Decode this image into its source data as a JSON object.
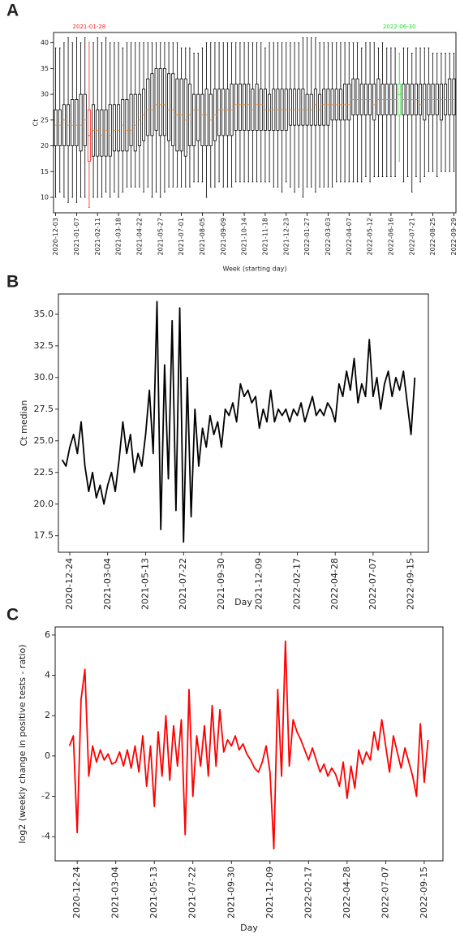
{
  "chart_data": [
    {
      "type": "box",
      "panel": "A",
      "xlabel": "Week (starting day)",
      "ylabel": "Ct",
      "categories": [
        "2020-12-03",
        null,
        null,
        null,
        null,
        "2021-01-07",
        null,
        null,
        null,
        null,
        "2021-02-11",
        null,
        null,
        null,
        null,
        "2021-03-18",
        null,
        null,
        null,
        null,
        "2021-04-22",
        null,
        null,
        null,
        null,
        "2021-05-27",
        null,
        null,
        null,
        null,
        "2021-07-01",
        null,
        null,
        null,
        null,
        "2021-08-05",
        null,
        null,
        null,
        null,
        "2021-09-09",
        null,
        null,
        null,
        null,
        "2021-10-14",
        null,
        null,
        null,
        null,
        "2021-11-18",
        null,
        null,
        null,
        null,
        "2021-12-23",
        null,
        null,
        null,
        null,
        "2022-01-27",
        null,
        null,
        null,
        null,
        "2022-03-03",
        null,
        null,
        null,
        null,
        "2022-04-07",
        null,
        null,
        null,
        null,
        "2022-05-12",
        null,
        null,
        null,
        null,
        "2022-06-16",
        null,
        null,
        null,
        null,
        "2022-07-21",
        null,
        null,
        null,
        null,
        "2022-08-25",
        null,
        null,
        null,
        null,
        "2022-09-29"
      ],
      "low": [
        10,
        11,
        10,
        9,
        10,
        9,
        10,
        10,
        8,
        10,
        10,
        10,
        11,
        10,
        11,
        10,
        11,
        12,
        12,
        12,
        12,
        11,
        12,
        10,
        11,
        10,
        11,
        12,
        12,
        12,
        12,
        12,
        12,
        13,
        13,
        13,
        10,
        12,
        12,
        13,
        12,
        12,
        12,
        13,
        13,
        13,
        13,
        13,
        13,
        13,
        13,
        13,
        12,
        12,
        11,
        13,
        12,
        11,
        12,
        10,
        12,
        12,
        11,
        12,
        12,
        12,
        12,
        13,
        13,
        13,
        13,
        13,
        13,
        13,
        14,
        13,
        14,
        14,
        14,
        14,
        14,
        14,
        17,
        13,
        14,
        11,
        14,
        13,
        14,
        15,
        15,
        14,
        15,
        15,
        15,
        15
      ],
      "q1": [
        20,
        20,
        20,
        20,
        20,
        20,
        19,
        20,
        17,
        18,
        18,
        18,
        18,
        18,
        19,
        19,
        19,
        19,
        20,
        19,
        20,
        21,
        22,
        22,
        23,
        22,
        22,
        21,
        20,
        19,
        19,
        18,
        20,
        20,
        21,
        20,
        20,
        20,
        21,
        22,
        22,
        22,
        22,
        23,
        23,
        23,
        23,
        23,
        23,
        23,
        23,
        23,
        23,
        23,
        23,
        23,
        24,
        24,
        24,
        24,
        24,
        24,
        24,
        24,
        24,
        24,
        25,
        25,
        25,
        25,
        25,
        26,
        26,
        26,
        26,
        26,
        25,
        26,
        26,
        26,
        26,
        26,
        26,
        26,
        26,
        26,
        26,
        26,
        25,
        26,
        26,
        26,
        25,
        26,
        26,
        26
      ],
      "median": [
        24,
        24,
        25,
        24,
        24,
        24,
        24,
        25,
        22,
        23,
        23,
        22,
        23,
        22,
        23,
        23,
        24,
        23,
        23,
        24,
        25,
        26,
        27,
        27,
        28,
        28,
        28,
        27,
        27,
        26,
        26,
        25,
        26,
        27,
        27,
        26,
        26,
        25,
        26,
        27,
        27,
        27,
        27,
        28,
        28,
        28,
        28,
        27,
        28,
        28,
        27,
        27,
        27,
        27,
        27,
        27,
        27,
        27,
        27,
        27,
        27,
        27,
        28,
        27,
        28,
        28,
        28,
        28,
        28,
        28,
        28,
        29,
        29,
        29,
        29,
        29,
        28,
        29,
        29,
        29,
        29,
        29,
        30,
        29,
        29,
        29,
        29,
        28,
        29,
        29,
        29,
        29,
        29,
        29,
        29,
        29
      ],
      "q3": [
        27,
        27,
        28,
        28,
        29,
        29,
        30,
        30,
        27,
        28,
        27,
        27,
        27,
        28,
        28,
        28,
        29,
        29,
        30,
        30,
        30,
        31,
        33,
        34,
        35,
        35,
        35,
        34,
        34,
        33,
        33,
        33,
        32,
        30,
        30,
        30,
        31,
        30,
        31,
        31,
        31,
        31,
        32,
        32,
        32,
        32,
        32,
        31,
        32,
        31,
        31,
        30,
        31,
        31,
        31,
        31,
        31,
        31,
        31,
        31,
        30,
        30,
        31,
        30,
        31,
        31,
        31,
        31,
        31,
        32,
        32,
        33,
        33,
        32,
        32,
        32,
        32,
        33,
        32,
        32,
        32,
        32,
        32,
        32,
        32,
        32,
        32,
        32,
        32,
        32,
        32,
        32,
        32,
        32,
        33,
        33
      ],
      "high": [
        39,
        39,
        40,
        41,
        40,
        41,
        40,
        41,
        40,
        40,
        41,
        40,
        41,
        40,
        40,
        40,
        39,
        40,
        40,
        40,
        40,
        40,
        40,
        40,
        40,
        40,
        40,
        40,
        40,
        40,
        39,
        39,
        39,
        38,
        38,
        39,
        40,
        40,
        40,
        40,
        40,
        40,
        40,
        40,
        40,
        40,
        40,
        40,
        40,
        40,
        39,
        40,
        40,
        40,
        40,
        40,
        40,
        40,
        40,
        41,
        41,
        41,
        41,
        40,
        40,
        40,
        40,
        40,
        40,
        40,
        40,
        40,
        40,
        39,
        40,
        40,
        40,
        39,
        40,
        39,
        39,
        39,
        38,
        39,
        39,
        38,
        39,
        39,
        39,
        39,
        38,
        38,
        38,
        38,
        38,
        38
      ],
      "color": "#000000",
      "median_color": "#ff8c1a",
      "annotations": [
        {
          "text": "2021-01-28",
          "color": "#ff2020"
        },
        {
          "text": "2022-06-30",
          "color": "#22dd22"
        }
      ],
      "ylim": [
        7,
        42
      ],
      "yticks": [
        10,
        15,
        20,
        25,
        30,
        35,
        40
      ]
    },
    {
      "type": "line",
      "panel": "B",
      "xlabel": "Day",
      "ylabel": "Ct median",
      "color": "#000000",
      "x": [
        "2020-12-10",
        "2020-12-17",
        "2020-12-24",
        "2020-12-31",
        "2021-01-07",
        "2021-01-14",
        "2021-01-21",
        "2021-01-28",
        "2021-02-04",
        "2021-02-11",
        "2021-02-18",
        "2021-02-25",
        "2021-03-04",
        "2021-03-11",
        "2021-03-18",
        "2021-03-25",
        "2021-04-01",
        "2021-04-08",
        "2021-04-15",
        "2021-04-22",
        "2021-04-29",
        "2021-05-06",
        "2021-05-13",
        "2021-05-20",
        "2021-05-27",
        "2021-06-03",
        "2021-06-10",
        "2021-06-17",
        "2021-06-24",
        "2021-07-01",
        "2021-07-08",
        "2021-07-15",
        "2021-07-22",
        "2021-07-29",
        "2021-08-05",
        "2021-08-12",
        "2021-08-19",
        "2021-08-26",
        "2021-09-02",
        "2021-09-09",
        "2021-09-16",
        "2021-09-23",
        "2021-09-30",
        "2021-10-07",
        "2021-10-14",
        "2021-10-21",
        "2021-10-28",
        "2021-11-04",
        "2021-11-11",
        "2021-11-18",
        "2021-11-25",
        "2021-12-02",
        "2021-12-09",
        "2021-12-16",
        "2021-12-23",
        "2021-12-30",
        "2022-01-06",
        "2022-01-13",
        "2022-01-20",
        "2022-01-27",
        "2022-02-03",
        "2022-02-10",
        "2022-02-17",
        "2022-02-24",
        "2022-03-03",
        "2022-03-10",
        "2022-03-17",
        "2022-03-24",
        "2022-03-31",
        "2022-04-07",
        "2022-04-14",
        "2022-04-21",
        "2022-04-28",
        "2022-05-05",
        "2022-05-12",
        "2022-05-19",
        "2022-05-26",
        "2022-06-02",
        "2022-06-09",
        "2022-06-16",
        "2022-06-23",
        "2022-06-30",
        "2022-07-07",
        "2022-07-14",
        "2022-07-21",
        "2022-07-28",
        "2022-08-04",
        "2022-08-11",
        "2022-08-18",
        "2022-08-25",
        "2022-09-01",
        "2022-09-08",
        "2022-09-15",
        "2022-09-22"
      ],
      "values": [
        23.5,
        23.0,
        24.5,
        25.5,
        24.0,
        26.5,
        23.0,
        21.0,
        22.5,
        20.5,
        21.5,
        20.0,
        21.5,
        22.5,
        21.0,
        23.5,
        26.5,
        24.0,
        25.5,
        22.5,
        24.0,
        23.0,
        25.5,
        29.0,
        24.0,
        36.0,
        18.0,
        31.0,
        22.0,
        34.5,
        19.5,
        35.5,
        17.0,
        30.0,
        19.0,
        27.5,
        23.0,
        26.0,
        24.5,
        27.0,
        25.5,
        26.5,
        24.5,
        27.5,
        27.0,
        28.0,
        26.5,
        29.5,
        28.5,
        29.0,
        28.0,
        28.5,
        26.0,
        27.5,
        26.5,
        29.0,
        26.5,
        27.5,
        27.0,
        27.5,
        26.5,
        27.5,
        27.0,
        28.0,
        26.5,
        27.5,
        28.5,
        27.0,
        27.5,
        27.0,
        28.0,
        27.5,
        26.5,
        29.5,
        28.5,
        30.5,
        29.0,
        31.5,
        28.0,
        29.5,
        28.5,
        33.0,
        28.5,
        30.0,
        27.5,
        29.5,
        30.5,
        28.5,
        30.0,
        29.0,
        30.5,
        28.0,
        25.5,
        30.0
      ],
      "xlim": [
        "2020-12-03",
        "2022-10-17"
      ],
      "xticks": [
        "2020-12-24",
        "2021-03-04",
        "2021-05-13",
        "2021-07-22",
        "2021-09-30",
        "2021-12-09",
        "2022-02-17",
        "2022-04-28",
        "2022-07-07",
        "2022-09-15"
      ],
      "ylim": [
        16.2,
        36.6
      ],
      "yticks": [
        17.5,
        {
          "value": 20,
          "label": "20.0"
        },
        22.5,
        {
          "value": 25,
          "label": "25.0"
        },
        27.5,
        {
          "value": 30,
          "label": "30.0"
        },
        32.5,
        {
          "value": 35,
          "label": "35.0"
        }
      ]
    },
    {
      "type": "line",
      "panel": "C",
      "xlabel": "Day",
      "ylabel": "log2 (weekly change in positive tests - ratio)",
      "color": "#ff0000",
      "x": [
        "2020-12-10",
        "2020-12-17",
        "2020-12-24",
        "2020-12-31",
        "2021-01-07",
        "2021-01-14",
        "2021-01-21",
        "2021-01-28",
        "2021-02-04",
        "2021-02-11",
        "2021-02-18",
        "2021-02-25",
        "2021-03-04",
        "2021-03-11",
        "2021-03-18",
        "2021-03-25",
        "2021-04-01",
        "2021-04-08",
        "2021-04-15",
        "2021-04-22",
        "2021-04-29",
        "2021-05-06",
        "2021-05-13",
        "2021-05-20",
        "2021-05-27",
        "2021-06-03",
        "2021-06-10",
        "2021-06-17",
        "2021-06-24",
        "2021-07-01",
        "2021-07-08",
        "2021-07-15",
        "2021-07-22",
        "2021-07-29",
        "2021-08-05",
        "2021-08-12",
        "2021-08-19",
        "2021-08-26",
        "2021-09-02",
        "2021-09-09",
        "2021-09-16",
        "2021-09-23",
        "2021-09-30",
        "2021-10-07",
        "2021-10-14",
        "2021-10-21",
        "2021-10-28",
        "2021-11-04",
        "2021-11-11",
        "2021-11-18",
        "2021-11-25",
        "2021-12-02",
        "2021-12-09",
        "2021-12-16",
        "2021-12-23",
        "2021-12-30",
        "2022-01-06",
        "2022-01-13",
        "2022-01-20",
        "2022-01-27",
        "2022-02-03",
        "2022-02-10",
        "2022-02-17",
        "2022-02-24",
        "2022-03-03",
        "2022-03-10",
        "2022-03-17",
        "2022-03-24",
        "2022-03-31",
        "2022-04-07",
        "2022-04-14",
        "2022-04-21",
        "2022-04-28",
        "2022-05-05",
        "2022-05-12",
        "2022-05-19",
        "2022-05-26",
        "2022-06-02",
        "2022-06-09",
        "2022-06-16",
        "2022-06-23",
        "2022-06-30",
        "2022-07-07",
        "2022-07-14",
        "2022-07-21",
        "2022-07-28",
        "2022-08-04",
        "2022-08-11",
        "2022-08-18",
        "2022-08-25",
        "2022-09-01",
        "2022-09-08",
        "2022-09-15",
        "2022-09-22"
      ],
      "values": [
        0.5,
        1.0,
        -3.8,
        2.8,
        4.3,
        -1.0,
        0.5,
        -0.3,
        0.3,
        -0.2,
        0.1,
        -0.4,
        -0.3,
        0.2,
        -0.5,
        0.3,
        -0.6,
        0.5,
        -0.8,
        1.0,
        -1.5,
        0.5,
        -2.5,
        1.2,
        -1.0,
        2.0,
        -1.2,
        1.5,
        -0.5,
        1.8,
        -3.9,
        3.3,
        -2.0,
        1.0,
        -0.5,
        1.5,
        -1.0,
        2.5,
        -0.5,
        2.3,
        0.2,
        0.8,
        0.5,
        1.0,
        0.3,
        0.6,
        0.1,
        -0.2,
        -0.6,
        -0.8,
        -0.3,
        0.5,
        -0.8,
        -4.6,
        3.3,
        -1.0,
        5.7,
        -0.5,
        1.8,
        1.2,
        0.8,
        0.3,
        -0.2,
        0.4,
        -0.2,
        -0.8,
        -0.4,
        -1.0,
        -0.6,
        -0.9,
        -1.5,
        -0.3,
        -2.1,
        -0.5,
        -1.6,
        0.3,
        -0.4,
        0.2,
        -0.2,
        1.2,
        0.3,
        1.8,
        0.5,
        -0.8,
        1.0,
        0.2,
        -0.6,
        0.4,
        -0.3,
        -1.0,
        -2.0,
        1.6,
        -1.3,
        0.8
      ],
      "xlim": [
        "2020-11-14",
        "2022-10-19"
      ],
      "xticks": [
        "2020-12-24",
        "2021-03-04",
        "2021-05-13",
        "2021-07-22",
        "2021-09-30",
        "2021-12-09",
        "2022-02-17",
        "2022-04-28",
        "2022-07-07",
        "2022-09-15"
      ],
      "ylim": [
        -5.2,
        6.4
      ],
      "yticks": [
        -4,
        -2,
        0,
        2,
        4,
        6
      ]
    }
  ]
}
